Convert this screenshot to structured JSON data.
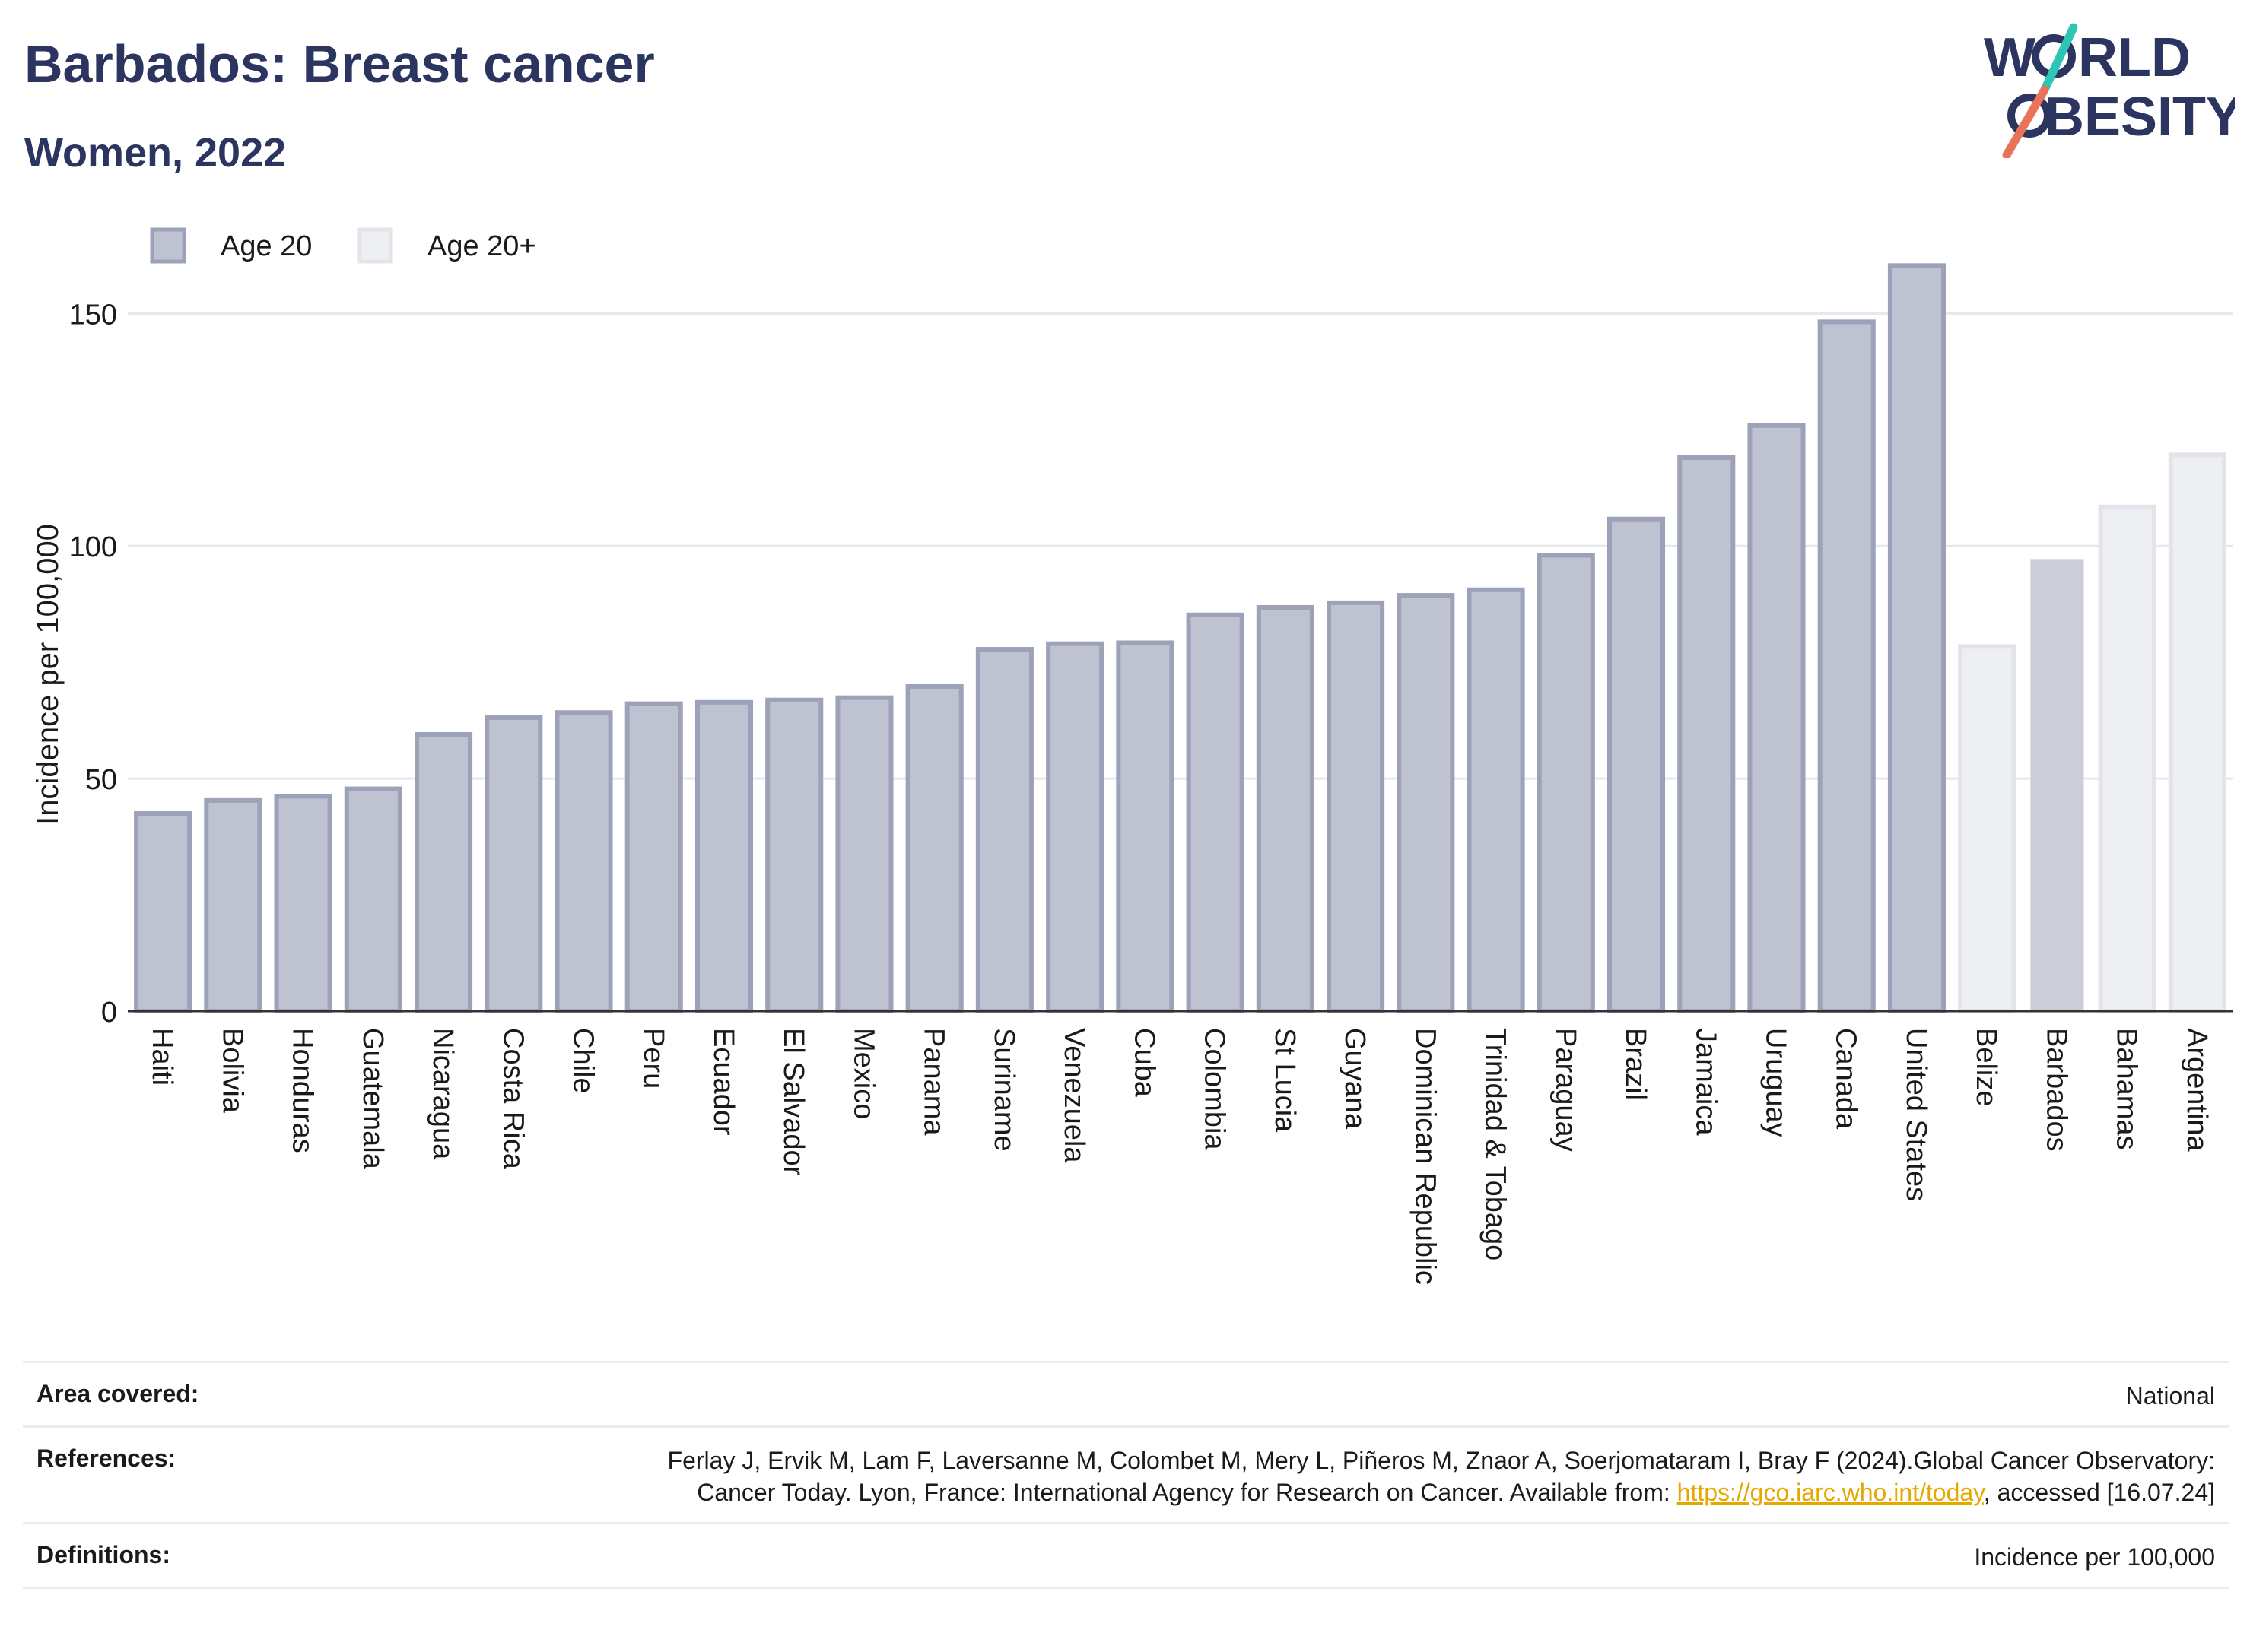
{
  "header": {
    "title": "Barbados: Breast cancer",
    "subtitle": "Women, 2022"
  },
  "logo": {
    "line1_part1": "W",
    "line1_part2": "RLD",
    "line2_part1": "",
    "line2_part2": "BESITY",
    "colors": {
      "text": "#2b3560",
      "slash_teal": "#2ec4b6",
      "slash_coral": "#e8735a"
    }
  },
  "chart_data": {
    "type": "bar",
    "title": "",
    "xlabel": "",
    "ylabel": "Incidence per 100,000",
    "ylim": [
      0,
      170
    ],
    "yticks": [
      0,
      50,
      100,
      150
    ],
    "grid": true,
    "legend": {
      "placement": "top-left",
      "entries": [
        {
          "label": "Age 20",
          "color": "#bfc2d1",
          "border": "#9da2b9"
        },
        {
          "label": "Age 20+",
          "color": "#eeeff3",
          "border": "#e2e4ea"
        }
      ]
    },
    "categories": [
      "Haiti",
      "Bolivia",
      "Honduras",
      "Guatemala",
      "Nicaragua",
      "Costa Rica",
      "Chile",
      "Peru",
      "Ecuador",
      "El Salvador",
      "Mexico",
      "Panama",
      "Suriname",
      "Venezuela",
      "Cuba",
      "Colombia",
      "St Lucia",
      "Guyana",
      "Dominican Republic",
      "Trinidad & Tobago",
      "Paraguay",
      "Brazil",
      "Jamaica",
      "Uruguay",
      "Canada",
      "United States",
      "Belize",
      "Barbados",
      "Bahamas",
      "Argentina"
    ],
    "values": [
      42.5,
      45.3,
      46.2,
      47.8,
      59.5,
      63.1,
      64.2,
      66.1,
      66.4,
      66.9,
      67.4,
      69.8,
      77.8,
      79.0,
      79.2,
      85.2,
      86.8,
      87.8,
      89.4,
      90.6,
      98.0,
      105.8,
      119.0,
      125.9,
      148.2,
      160.3,
      78.4,
      97.2,
      108.4,
      119.6
    ],
    "series_assignment": [
      "Age 20",
      "Age 20",
      "Age 20",
      "Age 20",
      "Age 20",
      "Age 20",
      "Age 20",
      "Age 20",
      "Age 20",
      "Age 20",
      "Age 20",
      "Age 20",
      "Age 20",
      "Age 20",
      "Age 20",
      "Age 20",
      "Age 20",
      "Age 20",
      "Age 20",
      "Age 20",
      "Age 20",
      "Age 20",
      "Age 20",
      "Age 20",
      "Age 20",
      "Age 20",
      "Age 20+",
      "Age 20+",
      "Age 20+",
      "Age 20+"
    ],
    "highlight": "Barbados",
    "colors": {
      "age20_fill": "#bfc2d1",
      "age20_border": "#9da2b9",
      "age20plus_fill": "#eeeff3",
      "age20plus_border": "#e2e4ea",
      "highlight_fill": "#cbcdd8",
      "grid": "#e6e8ee",
      "axis": "#333333"
    }
  },
  "info": {
    "area_label": "Area covered:",
    "area_value": "National",
    "references_label": "References:",
    "references_text": "Ferlay J, Ervik M, Lam F, Laversanne M, Colombet M, Mery L, Piñeros M, Znaor A, Soerjomataram I, Bray F (2024).Global Cancer Observatory: Cancer Today. Lyon, France: International Agency for Research on Cancer. Available from: ",
    "references_link": "https://gco.iarc.who.int/today",
    "references_suffix": ", accessed [16.07.24]",
    "definitions_label": "Definitions:",
    "definitions_value": "Incidence per 100,000"
  }
}
